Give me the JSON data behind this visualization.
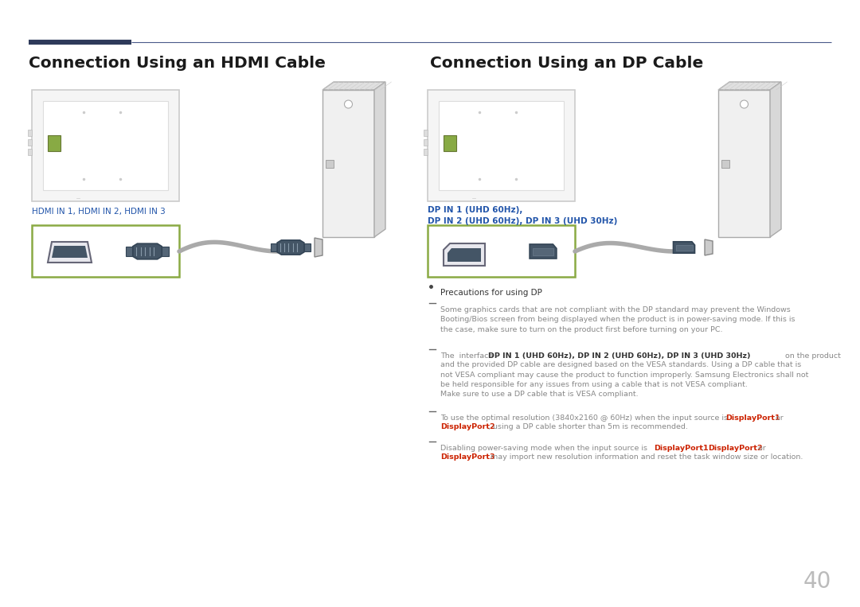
{
  "bg_color": "#ffffff",
  "title_left": "Connection Using an HDMI Cable",
  "title_right": "Connection Using an DP Cable",
  "title_color": "#1a1a1a",
  "title_fontsize": 14.5,
  "header_dark_color": "#2e3a5a",
  "header_light_color": "#4a5a8a",
  "hdmi_label": "HDMI IN 1, HDMI IN 2, HDMI IN 3",
  "hdmi_label_color": "#2255aa",
  "dp_label_line1": "DP IN 1 (UHD 60Hz),",
  "dp_label_line2": "DP IN 2 (UHD 60Hz), DP IN 3 (UHD 30Hz)",
  "dp_label_color": "#2255aa",
  "label_fontsize": 7.5,
  "bullet_title": "Precautions for using DP",
  "bullet_fontsize": 7.5,
  "text_color": "#888888",
  "text_fontsize": 6.8,
  "bold_color": "#333333",
  "red_color": "#cc2200",
  "page_number": "40",
  "page_color": "#bbbbbb",
  "monitor_outer": "#cccccc",
  "monitor_fill": "#f5f5f5",
  "screen_fill": "#ffffff",
  "screen_border": "#dddddd",
  "icon_fill": "#88aa44",
  "icon_border": "#667733",
  "box_border": "#8aaa44",
  "connector_dark": "#445566",
  "connector_mid": "#556677",
  "cable_color": "#aaaaaa",
  "plug_color": "#445566",
  "pc_fill": "#f0f0f0",
  "pc_border": "#aaaaaa",
  "pc_shadow": "#dddddd"
}
